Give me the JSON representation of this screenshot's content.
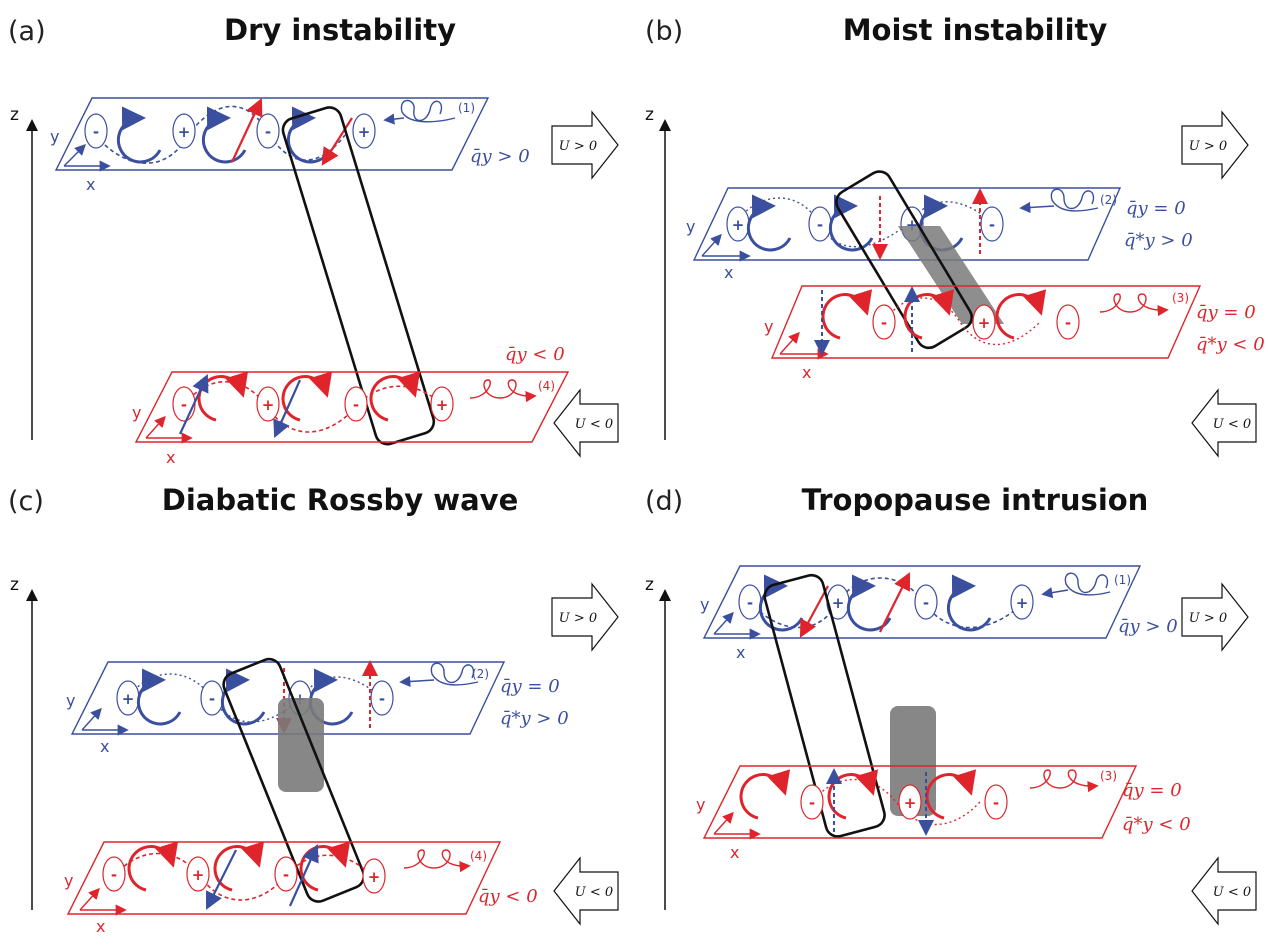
{
  "colors": {
    "upper": "#3a4f9e",
    "lower": "#e0242b",
    "box": "#111111",
    "shade": "#7a7a7a"
  },
  "axes": {
    "z": "z",
    "y": "y",
    "x": "x"
  },
  "wind": {
    "upper": "U > 0",
    "lower": "U < 0"
  },
  "panels": [
    {
      "letter": "(a)",
      "title": "Dry instability",
      "upper": {
        "wave": "(1)",
        "cond1": "q̄y > 0",
        "cond2": "",
        "signs": [
          "-",
          "+",
          "-",
          "+"
        ]
      },
      "lower": {
        "wave": "(4)",
        "cond1": "q̄y < 0",
        "cond2": "",
        "signs": [
          "-",
          "+",
          "-",
          "+"
        ]
      }
    },
    {
      "letter": "(b)",
      "title": "Moist instability",
      "upper": {
        "wave": "(2)",
        "cond1": "q̄y = 0",
        "cond2": "q̄*y > 0",
        "signs": [
          "+",
          "-",
          "+",
          "-"
        ]
      },
      "lower": {
        "wave": "(3)",
        "cond1": "q̄y = 0",
        "cond2": "q̄*y < 0",
        "signs": [
          "-",
          "+",
          "-"
        ]
      }
    },
    {
      "letter": "(c)",
      "title": "Diabatic Rossby wave",
      "upper": {
        "wave": "(2)",
        "cond1": "q̄y = 0",
        "cond2": "q̄*y > 0",
        "signs": [
          "+",
          "-",
          "+",
          "-"
        ]
      },
      "lower": {
        "wave": "(4)",
        "cond1": "q̄y < 0",
        "cond2": "",
        "signs": [
          "-",
          "+",
          "-",
          "+"
        ]
      }
    },
    {
      "letter": "(d)",
      "title": "Tropopause intrusion",
      "upper": {
        "wave": "(1)",
        "cond1": "q̄y > 0",
        "cond2": "",
        "signs": [
          "-",
          "+",
          "-",
          "+"
        ]
      },
      "lower": {
        "wave": "(3)",
        "cond1": "q̄y = 0",
        "cond2": "q̄*y < 0",
        "signs": [
          "-",
          "+",
          "-"
        ]
      }
    }
  ]
}
